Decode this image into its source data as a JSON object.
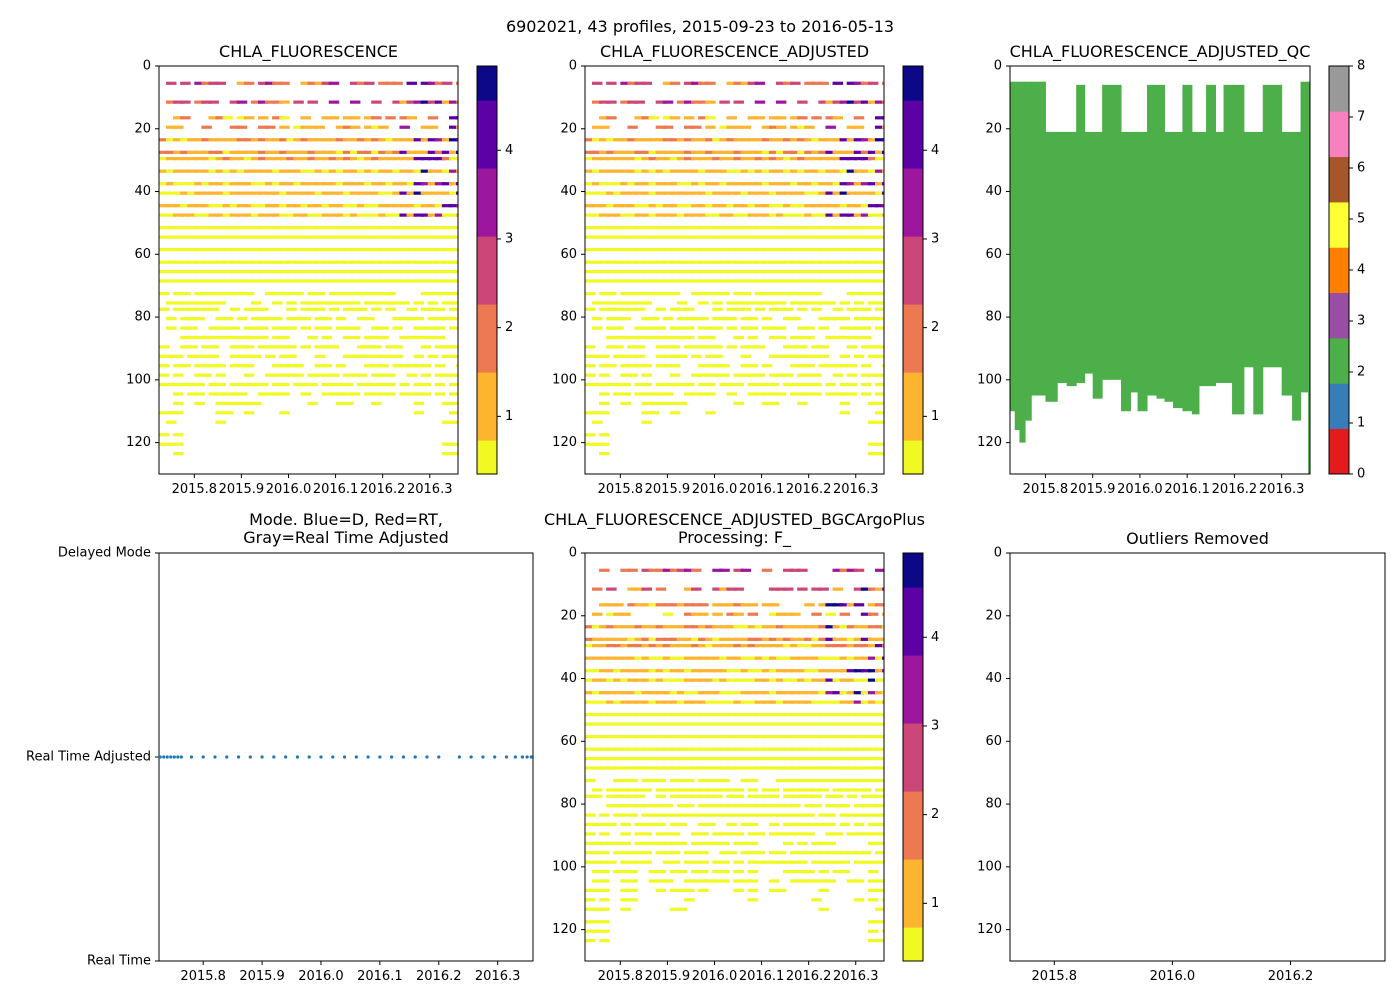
{
  "suptitle": "6902021, 43 profiles, 2015-09-23 to 2016-05-13",
  "colors": {
    "mode_marker": "#1f77b4",
    "qc_fill": "#4daf4a",
    "plasma": [
      "#f0f921",
      "#fdb42f",
      "#ed7953",
      "#cc4778",
      "#9c179e",
      "#5c01a6",
      "#0d0887"
    ],
    "qc_palette": [
      "#e41a1c",
      "#377eb8",
      "#4daf4a",
      "#984ea3",
      "#ff7f00",
      "#ffff33",
      "#a65628",
      "#f781bf",
      "#999999"
    ]
  },
  "chart_data": [
    {
      "id": "chla",
      "type": "heatmap",
      "title": "CHLA_FLUORESCENCE",
      "x_range": [
        2015.725,
        2016.36
      ],
      "x_ticks": [
        "2015.8",
        "2015.9",
        "2016.0",
        "2016.1",
        "2016.2",
        "2016.3"
      ],
      "ylim": [
        130,
        0
      ],
      "y_ticks": [
        "0",
        "20",
        "40",
        "60",
        "80",
        "100",
        "120"
      ],
      "colorbar": {
        "range": [
          0.35,
          4.95
        ],
        "ticks": [
          "1",
          "2",
          "3",
          "4"
        ],
        "colormap": "plasma_r"
      },
      "depth_max": 130,
      "profile_count": 43
    },
    {
      "id": "chla_adj",
      "type": "heatmap",
      "title": "CHLA_FLUORESCENCE_ADJUSTED",
      "x_range": [
        2015.725,
        2016.36
      ],
      "x_ticks": [
        "2015.8",
        "2015.9",
        "2016.0",
        "2016.1",
        "2016.2",
        "2016.3"
      ],
      "ylim": [
        130,
        0
      ],
      "y_ticks": [
        "0",
        "20",
        "40",
        "60",
        "80",
        "100",
        "120"
      ],
      "colorbar": {
        "range": [
          0.35,
          4.95
        ],
        "ticks": [
          "1",
          "2",
          "3",
          "4"
        ],
        "colormap": "plasma_r"
      },
      "depth_max": 130,
      "profile_count": 43
    },
    {
      "id": "qc",
      "type": "bar",
      "title": "CHLA_FLUORESCENCE_ADJUSTED_QC",
      "x_range": [
        2015.725,
        2016.36
      ],
      "x_ticks": [
        "2015.8",
        "2015.9",
        "2016.0",
        "2016.1",
        "2016.2",
        "2016.3"
      ],
      "ylim": [
        130,
        0
      ],
      "y_ticks": [
        "0",
        "20",
        "40",
        "60",
        "80",
        "100",
        "120"
      ],
      "qc_colorbar": {
        "ticks": [
          "0",
          "1",
          "2",
          "3",
          "4",
          "5",
          "6",
          "7",
          "8"
        ]
      },
      "qc_value": 2,
      "profiles": [
        {
          "x": 2015.727,
          "top": 5,
          "bottom": 110
        },
        {
          "x": 2015.735,
          "top": 5,
          "bottom": 116
        },
        {
          "x": 2015.745,
          "top": 5,
          "bottom": 120
        },
        {
          "x": 2015.757,
          "top": 5,
          "bottom": 113
        },
        {
          "x": 2015.77,
          "top": 5,
          "bottom": 105
        },
        {
          "x": 2015.8,
          "top": 21,
          "bottom": 107
        },
        {
          "x": 2015.825,
          "top": 21,
          "bottom": 101
        },
        {
          "x": 2015.845,
          "top": 21,
          "bottom": 102
        },
        {
          "x": 2015.865,
          "top": 6,
          "bottom": 101
        },
        {
          "x": 2015.883,
          "top": 21,
          "bottom": 98
        },
        {
          "x": 2015.9,
          "top": 21,
          "bottom": 106
        },
        {
          "x": 2015.92,
          "top": 6,
          "bottom": 100
        },
        {
          "x": 2015.94,
          "top": 6,
          "bottom": 100
        },
        {
          "x": 2015.96,
          "top": 21,
          "bottom": 110
        },
        {
          "x": 2015.98,
          "top": 21,
          "bottom": 104
        },
        {
          "x": 2015.995,
          "top": 21,
          "bottom": 110
        },
        {
          "x": 2016.015,
          "top": 6,
          "bottom": 105
        },
        {
          "x": 2016.035,
          "top": 6,
          "bottom": 106
        },
        {
          "x": 2016.052,
          "top": 21,
          "bottom": 107
        },
        {
          "x": 2016.07,
          "top": 21,
          "bottom": 109
        },
        {
          "x": 2016.09,
          "top": 6,
          "bottom": 110
        },
        {
          "x": 2016.11,
          "top": 21,
          "bottom": 111
        },
        {
          "x": 2016.125,
          "top": 21,
          "bottom": 102
        },
        {
          "x": 2016.14,
          "top": 6,
          "bottom": 102
        },
        {
          "x": 2016.16,
          "top": 21,
          "bottom": 101
        },
        {
          "x": 2016.177,
          "top": 6,
          "bottom": 101
        },
        {
          "x": 2016.195,
          "top": 6,
          "bottom": 111
        },
        {
          "x": 2016.22,
          "top": 21,
          "bottom": 96
        },
        {
          "x": 2016.24,
          "top": 21,
          "bottom": 111
        },
        {
          "x": 2016.26,
          "top": 6,
          "bottom": 96
        },
        {
          "x": 2016.278,
          "top": 6,
          "bottom": 96
        },
        {
          "x": 2016.3,
          "top": 21,
          "bottom": 105
        },
        {
          "x": 2016.322,
          "top": 21,
          "bottom": 113
        },
        {
          "x": 2016.34,
          "top": 5,
          "bottom": 104
        },
        {
          "x": 2016.356,
          "top": 5,
          "bottom": 130
        }
      ]
    },
    {
      "id": "mode",
      "type": "scatter",
      "title_lines": [
        "Mode. Blue=D, Red=RT,",
        "Gray=Real Time Adjusted"
      ],
      "x_range": [
        2015.725,
        2016.36
      ],
      "x_ticks": [
        "2015.8",
        "2015.9",
        "2016.0",
        "2016.1",
        "2016.2",
        "2016.3"
      ],
      "y_categories": [
        "Delayed Mode",
        "Real Time Adjusted",
        "Real Time"
      ],
      "points": {
        "y_category": "Real Time Adjusted",
        "x": [
          2015.727,
          2015.733,
          2015.739,
          2015.745,
          2015.751,
          2015.757,
          2015.763,
          2015.78,
          2015.8,
          2015.82,
          2015.84,
          2015.86,
          2015.88,
          2015.9,
          2015.92,
          2015.94,
          2015.96,
          2015.98,
          2016.0,
          2016.02,
          2016.04,
          2016.06,
          2016.08,
          2016.1,
          2016.12,
          2016.14,
          2016.16,
          2016.18,
          2016.2,
          2016.235,
          2016.255,
          2016.275,
          2016.295,
          2016.315,
          2016.33,
          2016.342,
          2016.35,
          2016.357
        ]
      }
    },
    {
      "id": "bgc",
      "type": "heatmap",
      "title_lines": [
        "CHLA_FLUORESCENCE_ADJUSTED_BGCArgoPlus",
        "Processing: F_"
      ],
      "x_range": [
        2015.725,
        2016.36
      ],
      "x_ticks": [
        "2015.8",
        "2015.9",
        "2016.0",
        "2016.1",
        "2016.2",
        "2016.3"
      ],
      "ylim": [
        130,
        0
      ],
      "y_ticks": [
        "0",
        "20",
        "40",
        "60",
        "80",
        "100",
        "120"
      ],
      "colorbar": {
        "range": [
          0.35,
          4.95
        ],
        "ticks": [
          "1",
          "2",
          "3",
          "4"
        ],
        "colormap": "plasma_r"
      },
      "depth_max": 130,
      "profile_count": 43
    },
    {
      "id": "outliers",
      "type": "scatter",
      "title": "Outliers Removed",
      "x_range": [
        2015.725,
        2016.36
      ],
      "x_ticks": [
        "2015.8",
        "2016.0",
        "2016.2"
      ],
      "ylim": [
        130,
        0
      ],
      "y_ticks": [
        "0",
        "20",
        "40",
        "60",
        "80",
        "100",
        "120"
      ],
      "points": []
    }
  ]
}
